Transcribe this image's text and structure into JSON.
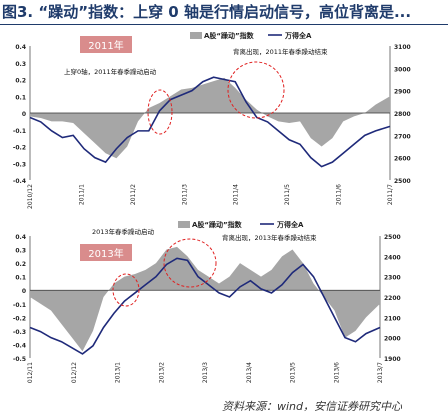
{
  "page": {
    "title": "图3. “躁动”指数：上穿 0 轴是行情启动信号，高位背离是..."
  },
  "source": "资料来源：wind，安信证券研究中心",
  "colors": {
    "area": "#a6a6a6",
    "line": "#1f2a7a",
    "highlight": "#e02020",
    "year_box": "#d98c8c",
    "title": "#1f3b6b"
  },
  "chart_data": [
    {
      "type": "area",
      "year_label": "2011年",
      "legend": [
        "A股“躁动”指数",
        "万得全A"
      ],
      "annotations": [
        "上穿0轴，2011年春季躁动启动",
        "背离出现，2011年春季躁动结束"
      ],
      "x_ticks": [
        "2010/12",
        "2011/1",
        "2011/2",
        "2011/3",
        "2011/4",
        "2011/5",
        "2011/6",
        "2011/7"
      ],
      "y_left_ticks": [
        0.4,
        0.3,
        0.2,
        0.1,
        0,
        -0.1,
        -0.2,
        -0.3,
        -0.4
      ],
      "y_right_ticks": [
        3100,
        3000,
        2900,
        2800,
        2700,
        2600,
        2500
      ],
      "ylim_left": [
        -0.4,
        0.4
      ],
      "ylim_right": [
        2500,
        3100
      ],
      "series": [
        {
          "name": "A股“躁动”指数",
          "axis": "left",
          "x": [
            0,
            0.03,
            0.06,
            0.09,
            0.12,
            0.15,
            0.18,
            0.21,
            0.24,
            0.27,
            0.3,
            0.33,
            0.36,
            0.39,
            0.42,
            0.45,
            0.48,
            0.51,
            0.54,
            0.57,
            0.6,
            0.63,
            0.66,
            0.69,
            0.72,
            0.75,
            0.78,
            0.81,
            0.84,
            0.87,
            0.9,
            0.93,
            0.96,
            1
          ],
          "values": [
            -0.02,
            -0.03,
            -0.05,
            -0.05,
            -0.06,
            -0.12,
            -0.18,
            -0.24,
            -0.27,
            -0.2,
            -0.05,
            0.03,
            0.06,
            0.1,
            0.14,
            0.15,
            0.17,
            0.19,
            0.21,
            0.15,
            0.08,
            0.02,
            -0.02,
            -0.05,
            -0.06,
            -0.05,
            -0.15,
            -0.2,
            -0.15,
            -0.05,
            -0.02,
            0.0,
            0.05,
            0.1
          ]
        },
        {
          "name": "万得全A",
          "axis": "right",
          "x": [
            0,
            0.03,
            0.06,
            0.09,
            0.12,
            0.15,
            0.18,
            0.21,
            0.24,
            0.27,
            0.3,
            0.33,
            0.36,
            0.39,
            0.42,
            0.45,
            0.48,
            0.51,
            0.54,
            0.57,
            0.6,
            0.63,
            0.66,
            0.69,
            0.72,
            0.75,
            0.78,
            0.81,
            0.84,
            0.87,
            0.9,
            0.93,
            0.96,
            1
          ],
          "values": [
            2780,
            2760,
            2720,
            2690,
            2700,
            2640,
            2600,
            2580,
            2640,
            2690,
            2720,
            2720,
            2810,
            2860,
            2880,
            2900,
            2940,
            2960,
            2950,
            2940,
            2850,
            2780,
            2760,
            2720,
            2680,
            2660,
            2600,
            2560,
            2580,
            2620,
            2660,
            2700,
            2720,
            2740
          ]
        }
      ]
    },
    {
      "type": "area",
      "year_label": "2013年",
      "legend": [
        "A股“躁动”指数",
        "万得全A"
      ],
      "annotations": [
        "2013年春季躁动启动",
        "背离出现，2013年春季躁动结束"
      ],
      "x_ticks": [
        "2012/11",
        "2012/12",
        "2013/1",
        "2013/2",
        "2013/3",
        "2013/4",
        "2013/5",
        "2013/6",
        "2013/7"
      ],
      "y_left_ticks": [
        0.4,
        0.3,
        0.2,
        0.1,
        0,
        -0.1,
        -0.2,
        -0.3,
        -0.4,
        -0.5
      ],
      "y_right_ticks": [
        2500,
        2400,
        2300,
        2200,
        2100,
        2000,
        1900
      ],
      "ylim_left": [
        -0.5,
        0.4
      ],
      "ylim_right": [
        1900,
        2500
      ],
      "series": [
        {
          "name": "A股“躁动”指数",
          "axis": "left",
          "x": [
            0,
            0.03,
            0.06,
            0.09,
            0.12,
            0.15,
            0.18,
            0.21,
            0.24,
            0.27,
            0.3,
            0.33,
            0.36,
            0.39,
            0.42,
            0.45,
            0.48,
            0.51,
            0.54,
            0.57,
            0.6,
            0.63,
            0.66,
            0.69,
            0.72,
            0.75,
            0.78,
            0.81,
            0.84,
            0.87,
            0.9,
            0.93,
            0.96,
            1
          ],
          "values": [
            -0.05,
            -0.1,
            -0.15,
            -0.25,
            -0.35,
            -0.45,
            -0.3,
            -0.05,
            0.05,
            0.1,
            0.12,
            0.15,
            0.2,
            0.3,
            0.32,
            0.25,
            0.15,
            0.1,
            0.05,
            0.1,
            0.2,
            0.15,
            0.1,
            0.15,
            0.25,
            0.3,
            0.2,
            0.05,
            -0.05,
            -0.15,
            -0.35,
            -0.3,
            -0.2,
            -0.1
          ]
        },
        {
          "name": "万得全A",
          "axis": "right",
          "x": [
            0,
            0.03,
            0.06,
            0.09,
            0.12,
            0.15,
            0.18,
            0.21,
            0.24,
            0.27,
            0.3,
            0.33,
            0.36,
            0.39,
            0.42,
            0.45,
            0.48,
            0.51,
            0.54,
            0.57,
            0.6,
            0.63,
            0.66,
            0.69,
            0.72,
            0.75,
            0.78,
            0.81,
            0.84,
            0.87,
            0.9,
            0.93,
            0.96,
            1
          ],
          "values": [
            2050,
            2030,
            2000,
            1980,
            1950,
            1920,
            1960,
            2050,
            2120,
            2180,
            2220,
            2260,
            2300,
            2360,
            2390,
            2380,
            2300,
            2260,
            2220,
            2200,
            2250,
            2280,
            2240,
            2220,
            2260,
            2320,
            2360,
            2300,
            2200,
            2100,
            2000,
            1980,
            2020,
            2050
          ]
        }
      ]
    }
  ]
}
